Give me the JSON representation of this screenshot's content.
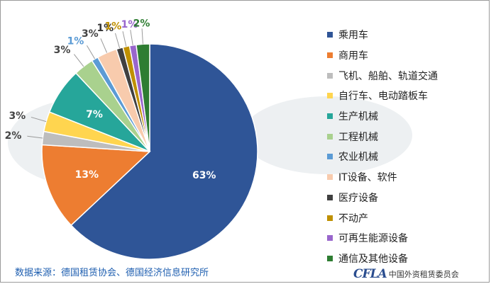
{
  "chart_data": {
    "type": "pie",
    "categories": [
      "乘用车",
      "商用车",
      "飞机、船舶、轨道交通",
      "自行车、电动踏板车",
      "生产机械",
      "工程机械",
      "农业机械",
      "IT设备、软件",
      "医疗设备",
      "不动产",
      "可再生能源设备",
      "通信及其他设备"
    ],
    "values": [
      63,
      13,
      2,
      3,
      7,
      3,
      1,
      3,
      1,
      1,
      1,
      2
    ],
    "labels": [
      "63%",
      "13%",
      "2%",
      "3%",
      "7%",
      "3%",
      "1%",
      "3%",
      "1%",
      "1%",
      "1%",
      "2%"
    ],
    "colors": [
      "#2f5597",
      "#ed7d31",
      "#bdbdbd",
      "#ffd54f",
      "#26a69a",
      "#a9d18e",
      "#5b9bd5",
      "#f8cbad",
      "#404040",
      "#bf9000",
      "#9966cc",
      "#2e7d32"
    ],
    "label_colors": [
      "#ffffff",
      "#ffffff",
      "#444444",
      "#444444",
      "#ffffff",
      "#444444",
      "#5b9bd5",
      "#444444",
      "#333333",
      "#bf9000",
      "#9966cc",
      "#2e7d32"
    ],
    "legend_position": "right"
  },
  "source_text": "数据来源：德国租赁协会、德国经济信息研究所",
  "logo": {
    "mark": "CFLA",
    "text": "中国外资租赁委员会"
  }
}
